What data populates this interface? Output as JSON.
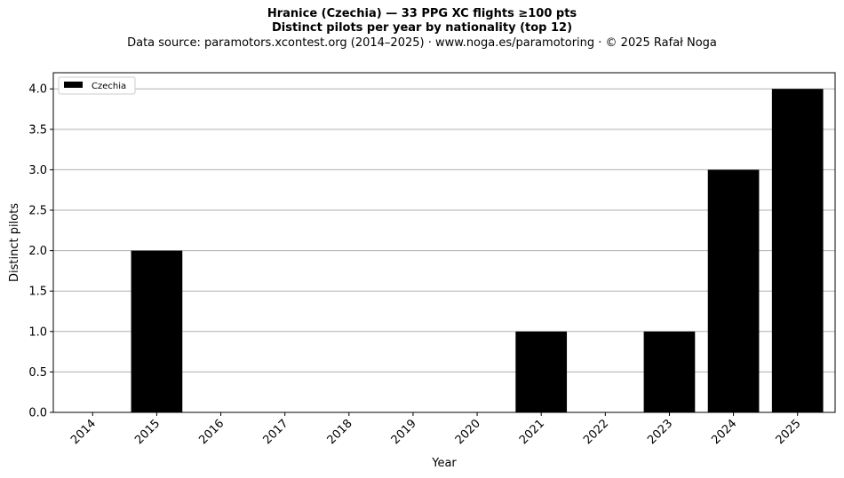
{
  "chart_data": {
    "type": "bar",
    "title": "Hranice (Czechia)  —  33 PPG XC flights ≥100 pts",
    "subtitle": "Distinct pilots per year by nationality (top 12)",
    "source": "Data source: paramotors.xcontest.org (2014–2025)  ·  www.noga.es/paramotoring  ·  © 2025 Rafał Noga",
    "xlabel": "Year",
    "ylabel": "Distinct pilots",
    "categories": [
      "2014",
      "2015",
      "2016",
      "2017",
      "2018",
      "2019",
      "2020",
      "2021",
      "2022",
      "2023",
      "2024",
      "2025"
    ],
    "series": [
      {
        "name": "Czechia",
        "color": "#000000",
        "values": [
          0,
          2,
          0,
          0,
          0,
          0,
          0,
          1,
          0,
          1,
          3,
          4
        ]
      }
    ],
    "ylim": [
      0,
      4.2
    ],
    "yticks": [
      "0.0",
      "0.5",
      "1.0",
      "1.5",
      "2.0",
      "2.5",
      "3.0",
      "3.5",
      "4.0"
    ],
    "grid": "horizontal",
    "legend_position": "top-left"
  }
}
